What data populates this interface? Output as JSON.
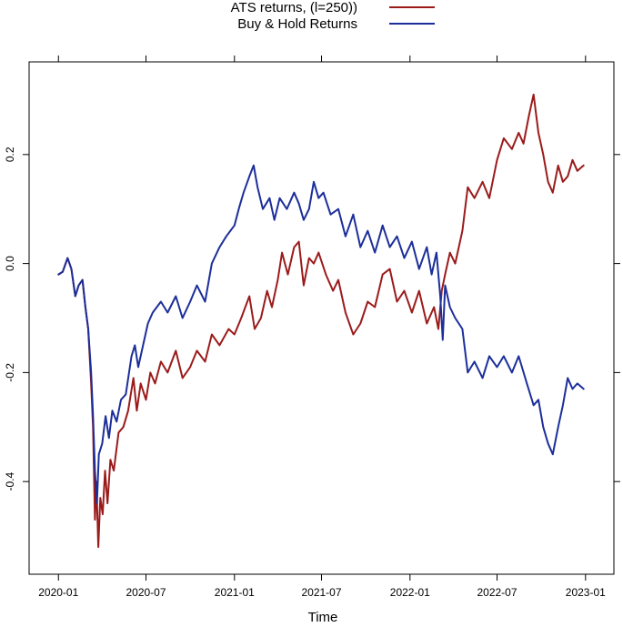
{
  "chart_data": {
    "type": "line",
    "title": "",
    "xlabel": "Time",
    "ylabel": "",
    "x_ticks": [
      "2020-01",
      "2020-07",
      "2021-01",
      "2021-07",
      "2022-01",
      "2022-07",
      "2023-01"
    ],
    "y_ticks": [
      "-0.4",
      "-0.2",
      "0.0",
      "0.2"
    ],
    "xlim": [
      "2019-11-01",
      "2023-03-01"
    ],
    "ylim": [
      -0.57,
      0.37
    ],
    "grid": false,
    "legend": {
      "placement": "top-center, outside plot area"
    },
    "series": [
      {
        "name": "ATS returns, (l=250))",
        "color": "#9B1B1B",
        "points": [
          [
            "2020-01-01",
            -0.02
          ],
          [
            "2020-01-10",
            -0.015
          ],
          [
            "2020-01-20",
            0.01
          ],
          [
            "2020-01-28",
            -0.01
          ],
          [
            "2020-02-05",
            -0.06
          ],
          [
            "2020-02-12",
            -0.04
          ],
          [
            "2020-02-20",
            -0.03
          ],
          [
            "2020-02-26",
            -0.08
          ],
          [
            "2020-03-03",
            -0.12
          ],
          [
            "2020-03-09",
            -0.22
          ],
          [
            "2020-03-13",
            -0.3
          ],
          [
            "2020-03-17",
            -0.47
          ],
          [
            "2020-03-20",
            -0.4
          ],
          [
            "2020-03-24",
            -0.52
          ],
          [
            "2020-03-28",
            -0.43
          ],
          [
            "2020-04-02",
            -0.46
          ],
          [
            "2020-04-07",
            -0.38
          ],
          [
            "2020-04-12",
            -0.44
          ],
          [
            "2020-04-18",
            -0.36
          ],
          [
            "2020-04-25",
            -0.38
          ],
          [
            "2020-05-05",
            -0.31
          ],
          [
            "2020-05-15",
            -0.3
          ],
          [
            "2020-05-25",
            -0.27
          ],
          [
            "2020-06-05",
            -0.21
          ],
          [
            "2020-06-12",
            -0.27
          ],
          [
            "2020-06-20",
            -0.22
          ],
          [
            "2020-07-01",
            -0.25
          ],
          [
            "2020-07-10",
            -0.2
          ],
          [
            "2020-07-20",
            -0.22
          ],
          [
            "2020-08-01",
            -0.18
          ],
          [
            "2020-08-15",
            -0.2
          ],
          [
            "2020-09-01",
            -0.16
          ],
          [
            "2020-09-15",
            -0.21
          ],
          [
            "2020-10-01",
            -0.19
          ],
          [
            "2020-10-15",
            -0.16
          ],
          [
            "2020-11-01",
            -0.18
          ],
          [
            "2020-11-15",
            -0.13
          ],
          [
            "2020-12-01",
            -0.15
          ],
          [
            "2020-12-20",
            -0.12
          ],
          [
            "2021-01-01",
            -0.13
          ],
          [
            "2021-01-15",
            -0.1
          ],
          [
            "2021-02-01",
            -0.06
          ],
          [
            "2021-02-12",
            -0.12
          ],
          [
            "2021-02-25",
            -0.1
          ],
          [
            "2021-03-10",
            -0.05
          ],
          [
            "2021-03-20",
            -0.08
          ],
          [
            "2021-04-01",
            -0.03
          ],
          [
            "2021-04-10",
            0.02
          ],
          [
            "2021-04-22",
            -0.02
          ],
          [
            "2021-05-05",
            0.03
          ],
          [
            "2021-05-15",
            0.04
          ],
          [
            "2021-05-25",
            -0.04
          ],
          [
            "2021-06-05",
            0.01
          ],
          [
            "2021-06-15",
            0.0
          ],
          [
            "2021-06-25",
            0.02
          ],
          [
            "2021-07-10",
            -0.02
          ],
          [
            "2021-07-25",
            -0.05
          ],
          [
            "2021-08-05",
            -0.03
          ],
          [
            "2021-08-20",
            -0.09
          ],
          [
            "2021-09-05",
            -0.13
          ],
          [
            "2021-09-20",
            -0.11
          ],
          [
            "2021-10-05",
            -0.07
          ],
          [
            "2021-10-20",
            -0.08
          ],
          [
            "2021-11-05",
            -0.02
          ],
          [
            "2021-11-20",
            -0.01
          ],
          [
            "2021-12-05",
            -0.07
          ],
          [
            "2021-12-20",
            -0.05
          ],
          [
            "2022-01-05",
            -0.09
          ],
          [
            "2022-01-20",
            -0.05
          ],
          [
            "2022-02-05",
            -0.11
          ],
          [
            "2022-02-20",
            -0.08
          ],
          [
            "2022-03-01",
            -0.12
          ],
          [
            "2022-03-08",
            -0.05
          ],
          [
            "2022-03-15",
            -0.02
          ],
          [
            "2022-03-25",
            0.02
          ],
          [
            "2022-04-05",
            0.0
          ],
          [
            "2022-04-20",
            0.06
          ],
          [
            "2022-05-01",
            0.14
          ],
          [
            "2022-05-15",
            0.12
          ],
          [
            "2022-06-01",
            0.15
          ],
          [
            "2022-06-15",
            0.12
          ],
          [
            "2022-07-01",
            0.19
          ],
          [
            "2022-07-15",
            0.23
          ],
          [
            "2022-08-01",
            0.21
          ],
          [
            "2022-08-15",
            0.24
          ],
          [
            "2022-08-25",
            0.22
          ],
          [
            "2022-09-05",
            0.27
          ],
          [
            "2022-09-15",
            0.31
          ],
          [
            "2022-09-25",
            0.24
          ],
          [
            "2022-10-05",
            0.2
          ],
          [
            "2022-10-15",
            0.15
          ],
          [
            "2022-10-25",
            0.13
          ],
          [
            "2022-11-05",
            0.18
          ],
          [
            "2022-11-15",
            0.15
          ],
          [
            "2022-11-25",
            0.16
          ],
          [
            "2022-12-05",
            0.19
          ],
          [
            "2022-12-15",
            0.17
          ],
          [
            "2022-12-28",
            0.18
          ]
        ]
      },
      {
        "name": "Buy & Hold Returns",
        "color": "#1C2E9A",
        "points": [
          [
            "2020-01-01",
            -0.02
          ],
          [
            "2020-01-10",
            -0.015
          ],
          [
            "2020-01-20",
            0.01
          ],
          [
            "2020-01-28",
            -0.01
          ],
          [
            "2020-02-05",
            -0.06
          ],
          [
            "2020-02-12",
            -0.04
          ],
          [
            "2020-02-20",
            -0.03
          ],
          [
            "2020-02-26",
            -0.08
          ],
          [
            "2020-03-03",
            -0.12
          ],
          [
            "2020-03-09",
            -0.2
          ],
          [
            "2020-03-13",
            -0.28
          ],
          [
            "2020-03-17",
            -0.38
          ],
          [
            "2020-03-21",
            -0.44
          ],
          [
            "2020-03-25",
            -0.35
          ],
          [
            "2020-04-01",
            -0.33
          ],
          [
            "2020-04-08",
            -0.28
          ],
          [
            "2020-04-15",
            -0.32
          ],
          [
            "2020-04-22",
            -0.27
          ],
          [
            "2020-05-01",
            -0.29
          ],
          [
            "2020-05-10",
            -0.25
          ],
          [
            "2020-05-20",
            -0.24
          ],
          [
            "2020-06-01",
            -0.17
          ],
          [
            "2020-06-08",
            -0.15
          ],
          [
            "2020-06-15",
            -0.19
          ],
          [
            "2020-06-25",
            -0.15
          ],
          [
            "2020-07-05",
            -0.11
          ],
          [
            "2020-07-15",
            -0.09
          ],
          [
            "2020-08-01",
            -0.07
          ],
          [
            "2020-08-15",
            -0.09
          ],
          [
            "2020-09-01",
            -0.06
          ],
          [
            "2020-09-15",
            -0.1
          ],
          [
            "2020-10-01",
            -0.07
          ],
          [
            "2020-10-15",
            -0.04
          ],
          [
            "2020-11-01",
            -0.07
          ],
          [
            "2020-11-15",
            0.0
          ],
          [
            "2020-12-01",
            0.03
          ],
          [
            "2020-12-15",
            0.05
          ],
          [
            "2021-01-01",
            0.07
          ],
          [
            "2021-01-10",
            0.1
          ],
          [
            "2021-01-20",
            0.13
          ],
          [
            "2021-02-01",
            0.16
          ],
          [
            "2021-02-10",
            0.18
          ],
          [
            "2021-02-18",
            0.14
          ],
          [
            "2021-03-01",
            0.1
          ],
          [
            "2021-03-15",
            0.12
          ],
          [
            "2021-03-25",
            0.08
          ],
          [
            "2021-04-05",
            0.12
          ],
          [
            "2021-04-20",
            0.1
          ],
          [
            "2021-05-05",
            0.13
          ],
          [
            "2021-05-15",
            0.11
          ],
          [
            "2021-05-25",
            0.08
          ],
          [
            "2021-06-05",
            0.1
          ],
          [
            "2021-06-15",
            0.15
          ],
          [
            "2021-06-25",
            0.12
          ],
          [
            "2021-07-05",
            0.13
          ],
          [
            "2021-07-20",
            0.09
          ],
          [
            "2021-08-05",
            0.1
          ],
          [
            "2021-08-20",
            0.05
          ],
          [
            "2021-09-05",
            0.09
          ],
          [
            "2021-09-20",
            0.03
          ],
          [
            "2021-10-05",
            0.06
          ],
          [
            "2021-10-20",
            0.02
          ],
          [
            "2021-11-05",
            0.07
          ],
          [
            "2021-11-20",
            0.03
          ],
          [
            "2021-12-05",
            0.05
          ],
          [
            "2021-12-20",
            0.01
          ],
          [
            "2022-01-05",
            0.04
          ],
          [
            "2022-01-20",
            -0.01
          ],
          [
            "2022-02-05",
            0.03
          ],
          [
            "2022-02-15",
            -0.02
          ],
          [
            "2022-02-25",
            0.02
          ],
          [
            "2022-03-05",
            -0.06
          ],
          [
            "2022-03-10",
            -0.14
          ],
          [
            "2022-03-15",
            -0.04
          ],
          [
            "2022-03-25",
            -0.08
          ],
          [
            "2022-04-05",
            -0.1
          ],
          [
            "2022-04-20",
            -0.12
          ],
          [
            "2022-05-01",
            -0.2
          ],
          [
            "2022-05-15",
            -0.18
          ],
          [
            "2022-06-01",
            -0.21
          ],
          [
            "2022-06-15",
            -0.17
          ],
          [
            "2022-07-01",
            -0.19
          ],
          [
            "2022-07-15",
            -0.17
          ],
          [
            "2022-08-01",
            -0.2
          ],
          [
            "2022-08-15",
            -0.17
          ],
          [
            "2022-09-01",
            -0.22
          ],
          [
            "2022-09-15",
            -0.26
          ],
          [
            "2022-09-25",
            -0.25
          ],
          [
            "2022-10-05",
            -0.3
          ],
          [
            "2022-10-15",
            -0.33
          ],
          [
            "2022-10-25",
            -0.35
          ],
          [
            "2022-11-05",
            -0.3
          ],
          [
            "2022-11-15",
            -0.26
          ],
          [
            "2022-11-25",
            -0.21
          ],
          [
            "2022-12-05",
            -0.23
          ],
          [
            "2022-12-15",
            -0.22
          ],
          [
            "2022-12-28",
            -0.23
          ]
        ]
      }
    ]
  }
}
